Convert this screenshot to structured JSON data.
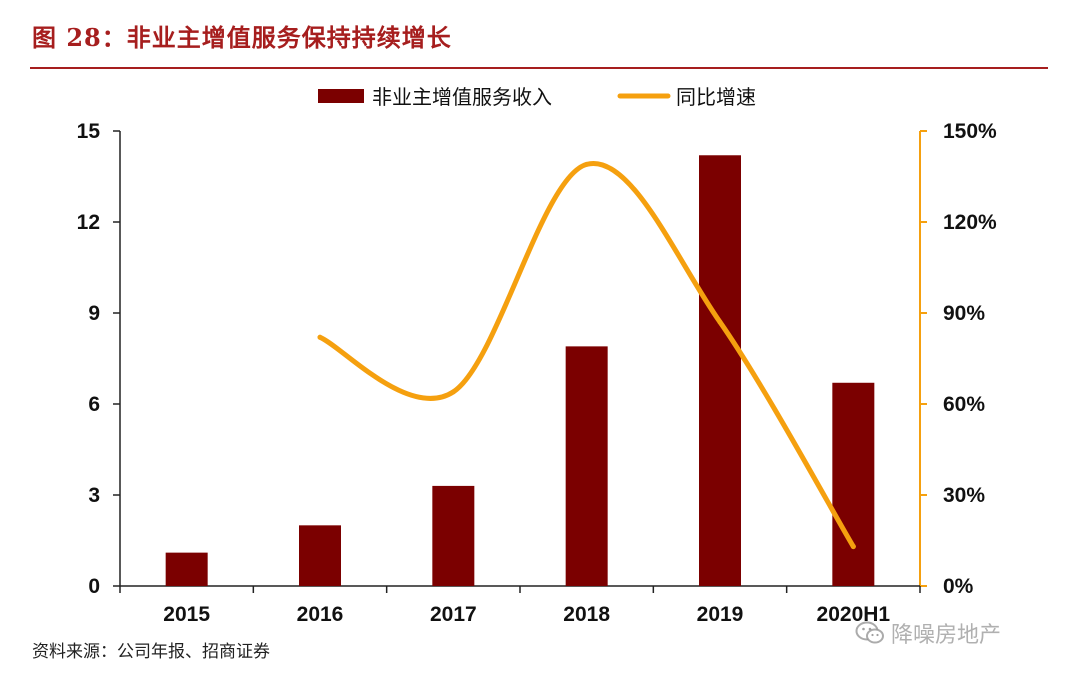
{
  "header": {
    "title": "图 28：非业主增值服务保持持续增长"
  },
  "footer": {
    "source": "资料来源：公司年报、招商证券",
    "watermark": "降噪房地产",
    "watermark_icon": "wechat-icon"
  },
  "colors": {
    "bar": "#7b0000",
    "line": "#f5a00f",
    "accent": "#a61e1e",
    "axis": "#222222"
  },
  "chart_data": {
    "type": "bar",
    "title": "",
    "categories": [
      "2015",
      "2016",
      "2017",
      "2018",
      "2019",
      "2020H1"
    ],
    "legend_position": "top-center",
    "grid": false,
    "series": [
      {
        "name": "非业主增值服务收入",
        "type": "bar",
        "axis": "left",
        "values": [
          1.1,
          2.0,
          3.3,
          7.9,
          14.2,
          6.7
        ]
      },
      {
        "name": "同比增速",
        "type": "line",
        "axis": "right",
        "values": [
          null,
          82,
          64,
          139,
          87,
          13
        ]
      }
    ],
    "y_left": {
      "min": 0,
      "max": 15,
      "ticks": [
        "0",
        "3",
        "6",
        "9",
        "12",
        "15"
      ]
    },
    "y_right": {
      "min": 0,
      "max": 150,
      "ticks": [
        "0%",
        "30%",
        "60%",
        "90%",
        "120%",
        "150%"
      ]
    }
  }
}
